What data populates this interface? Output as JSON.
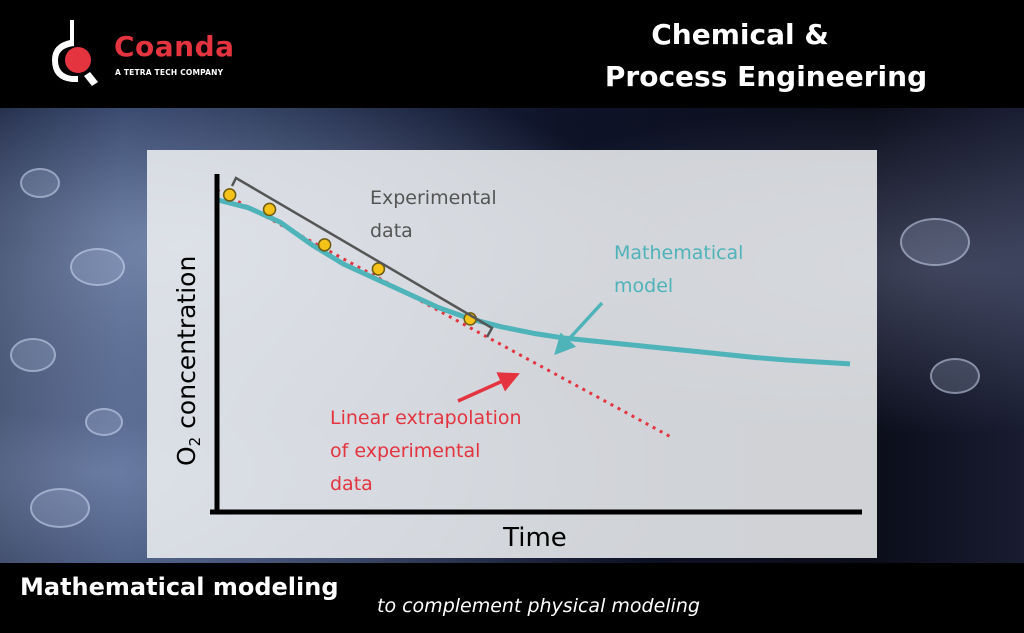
{
  "brand": {
    "name": "Coanda",
    "tagline": "A TETRA TECH COMPANY",
    "accent_color": "#e3343f"
  },
  "header": {
    "title_line1": "Chemical &",
    "title_line2": "Process Engineering"
  },
  "footer": {
    "main": "Mathematical modeling",
    "sub": "to complement physical modeling"
  },
  "chart_data": {
    "type": "line",
    "xlabel": "Time",
    "ylabel": "O2 concentration",
    "ylabel_parts": {
      "prefix": "O",
      "subscript": "2",
      "suffix": " concentration"
    },
    "grid": false,
    "series": [
      {
        "name": "Mathematical model",
        "color": "#4fb3ba",
        "style": "solid",
        "x": [
          0.0,
          0.05,
          0.1,
          0.15,
          0.2,
          0.25,
          0.3,
          0.35,
          0.4,
          0.45,
          0.5,
          0.55,
          0.6,
          0.65,
          0.7,
          0.75,
          0.8,
          0.85,
          0.9,
          0.95,
          1.0
        ],
        "y": [
          0.97,
          0.945,
          0.9,
          0.83,
          0.77,
          0.725,
          0.68,
          0.635,
          0.6,
          0.575,
          0.555,
          0.54,
          0.53,
          0.52,
          0.51,
          0.5,
          0.49,
          0.48,
          0.472,
          0.466,
          0.46
        ]
      },
      {
        "name": "Linear extrapolation of experimental data",
        "color": "#e3343f",
        "style": "dotted",
        "x": [
          0.0,
          0.72
        ],
        "y": [
          1.0,
          0.23
        ]
      },
      {
        "name": "Experimental data",
        "color": "#f5c21a",
        "style": "markers",
        "x": [
          0.02,
          0.083,
          0.17,
          0.255,
          0.4
        ],
        "y": [
          0.985,
          0.94,
          0.83,
          0.755,
          0.6
        ]
      }
    ],
    "annotations": [
      {
        "id": "experimental",
        "lines": [
          "Experimental",
          "data"
        ],
        "color": "#555555"
      },
      {
        "id": "model",
        "lines": [
          "Mathematical",
          "model"
        ],
        "color": "#4fb3ba"
      },
      {
        "id": "extrapolation",
        "lines": [
          "Linear extrapolation",
          "of experimental",
          "data"
        ],
        "color": "#e3343f"
      }
    ],
    "xlim": [
      0,
      1
    ],
    "ylim": [
      0,
      1.05
    ]
  }
}
